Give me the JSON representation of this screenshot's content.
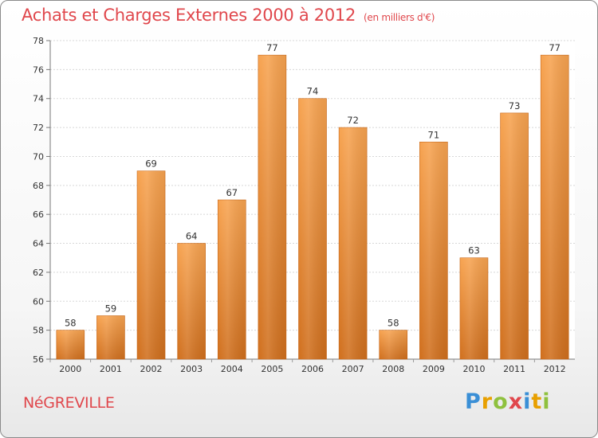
{
  "header": {
    "title": "Achats et Charges Externes 2000 à 2012",
    "subtitle": "(en milliers d'€)"
  },
  "footer": {
    "city": "NéGREVILLE",
    "logo_letters": [
      {
        "ch": "P",
        "color": "#3a8fd6"
      },
      {
        "ch": "r",
        "color": "#e8a000"
      },
      {
        "ch": "o",
        "color": "#8fc13e"
      },
      {
        "ch": "x",
        "color": "#e0474c"
      },
      {
        "ch": "i",
        "color": "#3a8fd6"
      },
      {
        "ch": "t",
        "color": "#e8a000"
      },
      {
        "ch": "i",
        "color": "#8fc13e"
      }
    ]
  },
  "chart_data": {
    "type": "bar",
    "title": "Achats et Charges Externes 2000 à 2012",
    "subtitle": "(en milliers d'€)",
    "categories": [
      "2000",
      "2001",
      "2002",
      "2003",
      "2004",
      "2005",
      "2006",
      "2007",
      "2008",
      "2009",
      "2010",
      "2011",
      "2012"
    ],
    "values": [
      58,
      59,
      69,
      64,
      67,
      77,
      74,
      72,
      58,
      71,
      63,
      73,
      77
    ],
    "ylim": [
      56,
      78
    ],
    "yticks": [
      56,
      58,
      60,
      62,
      64,
      66,
      68,
      70,
      72,
      74,
      76,
      78
    ],
    "grid": true,
    "bar_color_top": "#f7a350",
    "bar_color_bottom": "#d06f1d"
  }
}
